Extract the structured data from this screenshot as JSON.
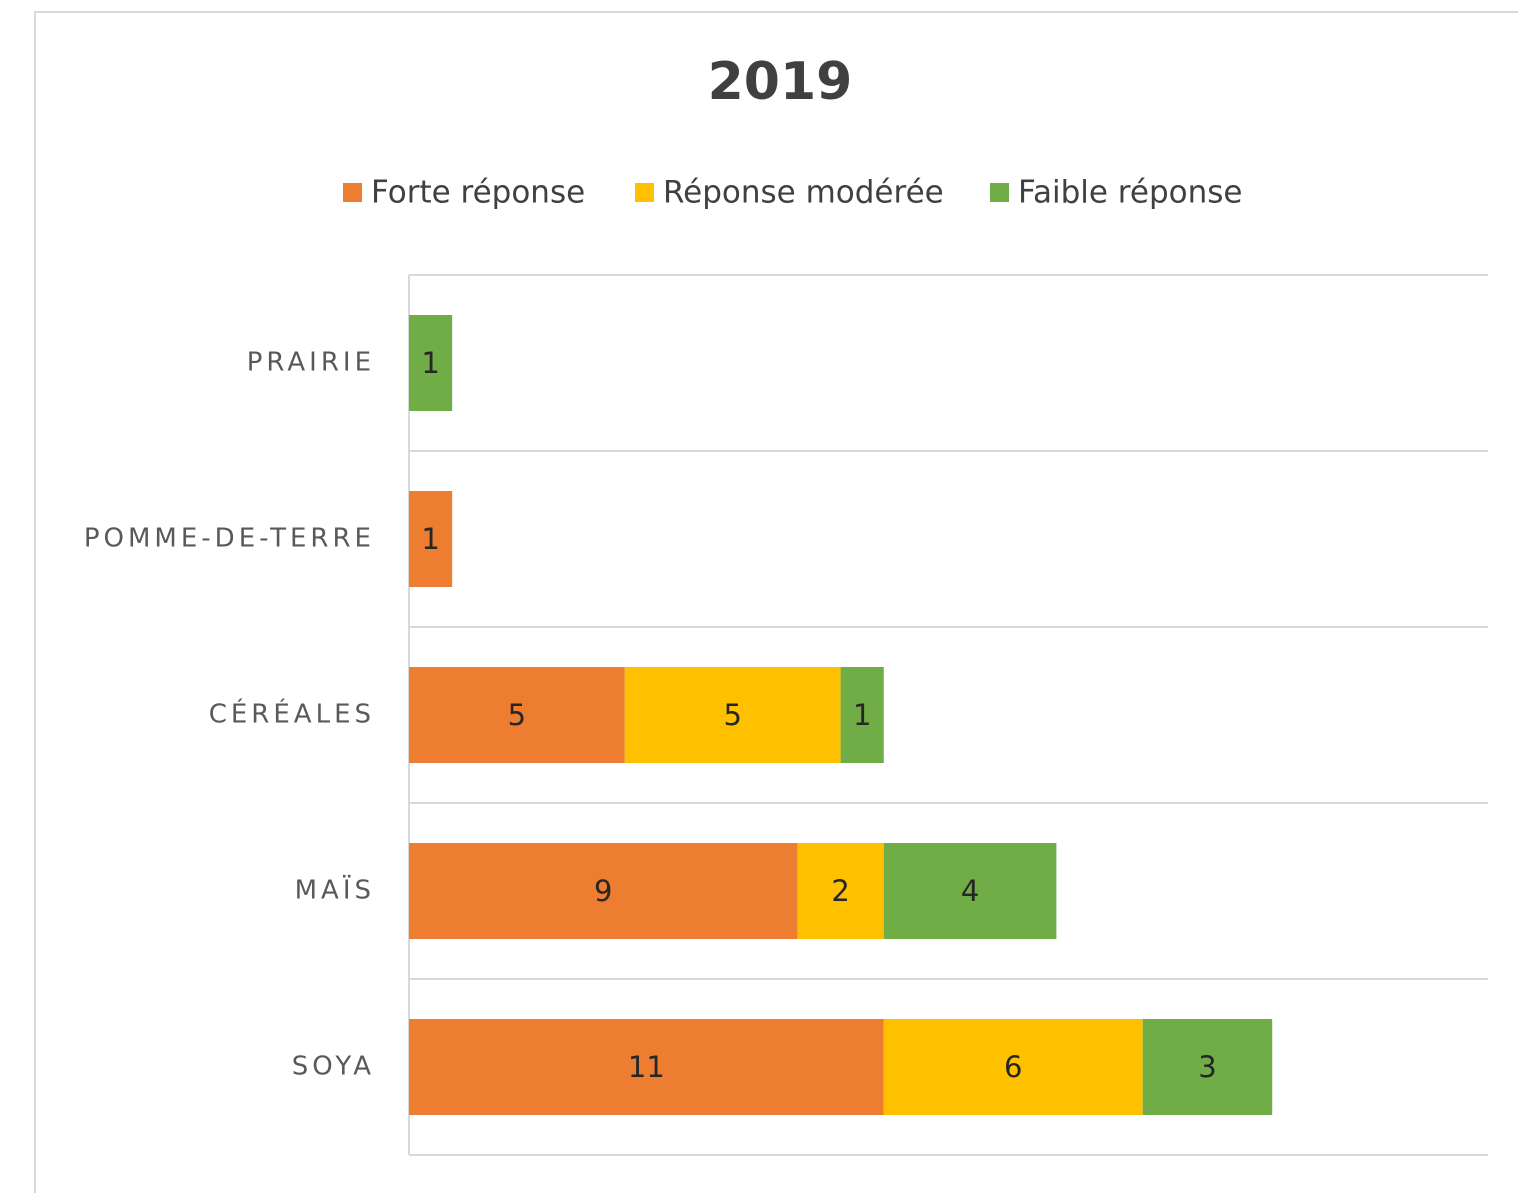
{
  "chart_data": {
    "type": "stacked-bar-horizontal",
    "title": "2019",
    "categories": [
      "PRAIRIE",
      "POMME-DE-TERRE",
      "CÉRÉALES",
      "MAÏS",
      "SOYA"
    ],
    "series": [
      {
        "name": "Forte réponse",
        "color": "#ed7d31",
        "values": [
          0,
          1,
          5,
          9,
          11
        ]
      },
      {
        "name": "Réponse modérée",
        "color": "#ffc000",
        "values": [
          0,
          0,
          5,
          2,
          6
        ]
      },
      {
        "name": "Faible réponse",
        "color": "#70ad47",
        "values": [
          1,
          0,
          1,
          4,
          3
        ]
      }
    ],
    "xlim": [
      0,
      25
    ],
    "legend": "top"
  }
}
